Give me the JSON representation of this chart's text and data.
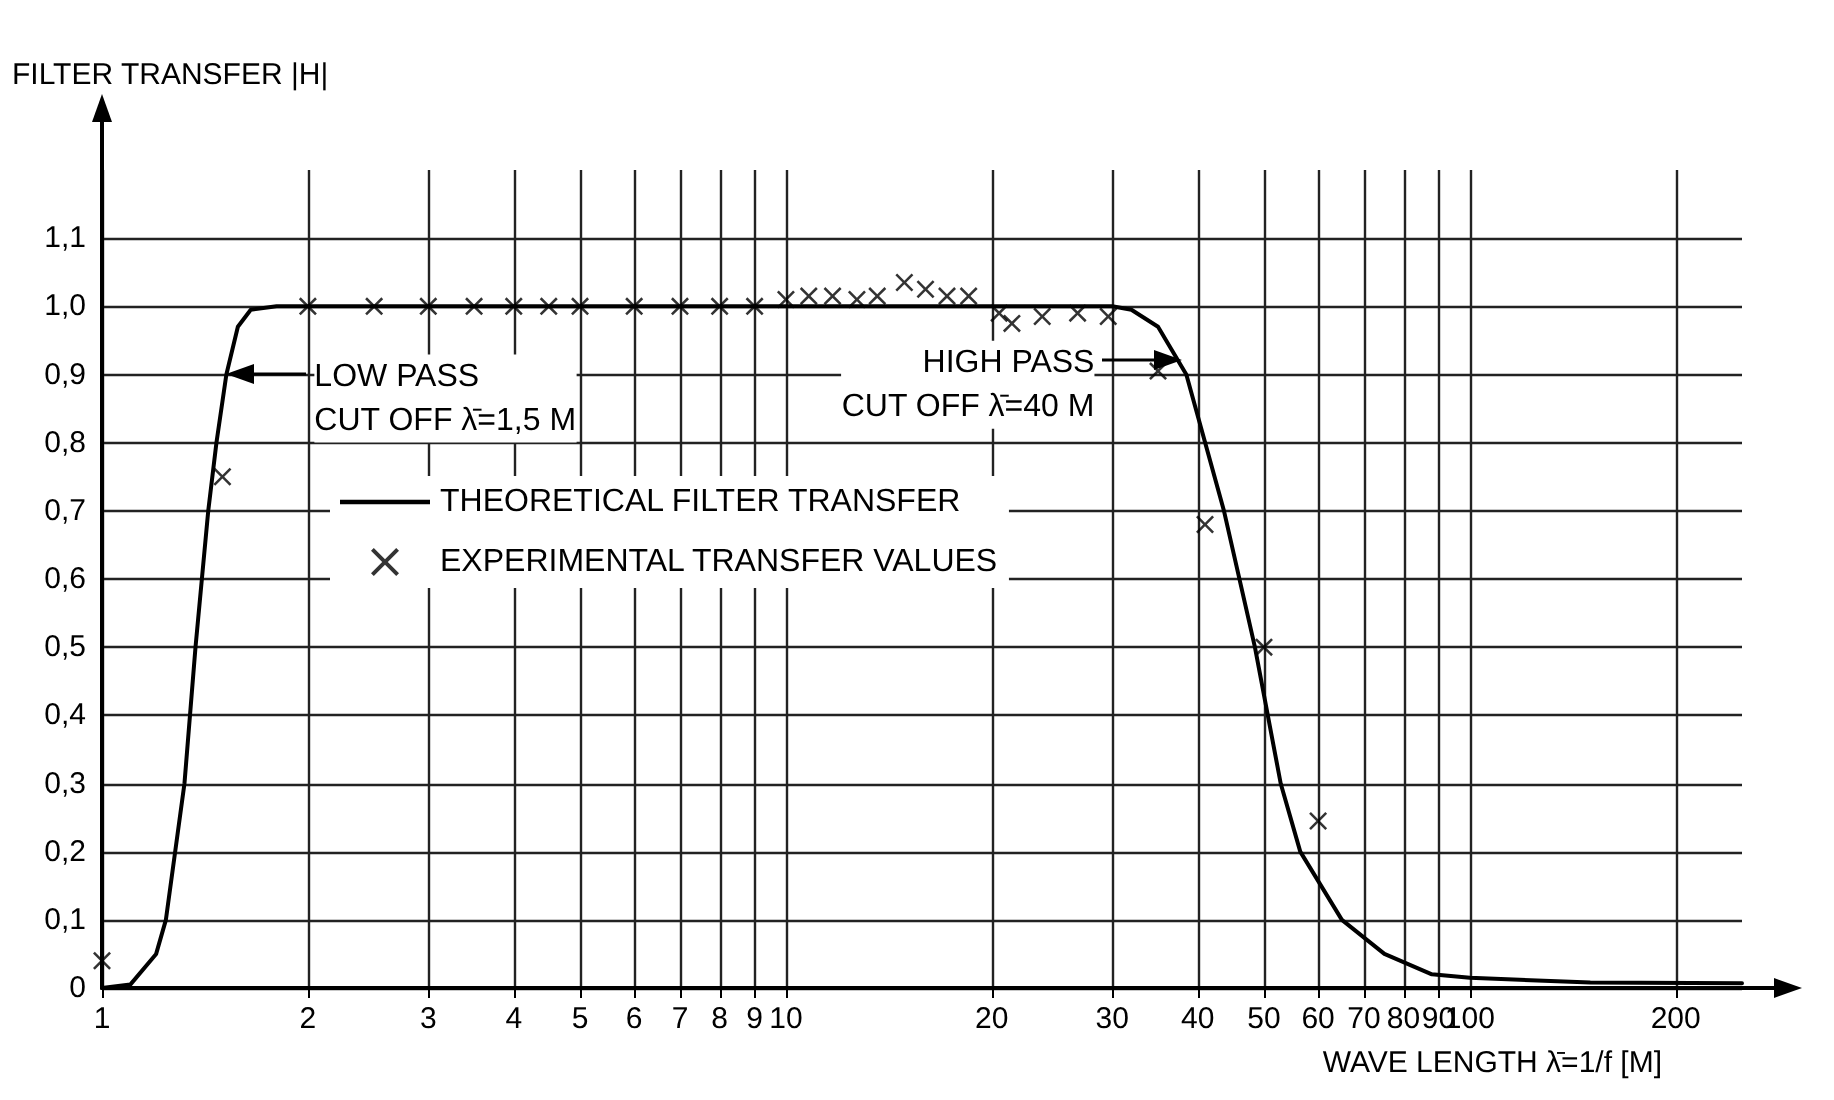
{
  "chart_data": {
    "type": "line",
    "ylabel": "FILTER TRANSFER |H|",
    "xlabel": "WAVE LENGTH λ̄=1/f [M]",
    "log": "x",
    "grid": true,
    "legend": "left",
    "xlim": [
      1,
      250
    ],
    "ylim": [
      0,
      1.2
    ],
    "xticks": [
      1,
      2,
      3,
      4,
      5,
      6,
      7,
      8,
      9,
      10,
      20,
      30,
      40,
      50,
      60,
      70,
      80,
      90,
      100,
      200
    ],
    "yticks": [
      0,
      {
        "value": 0.1,
        "label": "0,1"
      },
      {
        "value": 0.2,
        "label": "0,2"
      },
      {
        "value": 0.3,
        "label": "0,3"
      },
      {
        "value": 0.4,
        "label": "0,4"
      },
      {
        "value": 0.5,
        "label": "0,5"
      },
      {
        "value": 0.6,
        "label": "0,6"
      },
      {
        "value": 0.7,
        "label": "0,7"
      },
      {
        "value": 0.8,
        "label": "0,8"
      },
      {
        "value": 0.9,
        "label": "0,9"
      },
      {
        "value": 1.0,
        "label": "1,0"
      },
      {
        "value": 1.1,
        "label": "1,1"
      }
    ],
    "series": [
      {
        "name": "THEORETICAL FILTER TRANSFER",
        "type": "line",
        "color": "#000000",
        "marker": "none",
        "x": [
          1,
          1.1,
          1.2,
          1.24,
          1.32,
          1.37,
          1.43,
          1.47,
          1.52,
          1.58,
          1.65,
          1.8,
          2,
          10,
          30,
          32,
          35,
          38.5,
          43.7,
          48.5,
          52.9,
          56.5,
          65,
          75,
          88,
          100,
          150,
          250
        ],
        "values": [
          0,
          0.005,
          0.05,
          0.1,
          0.3,
          0.5,
          0.7,
          0.8,
          0.9,
          0.97,
          0.995,
          1.0,
          1.0,
          1.0,
          1.0,
          0.995,
          0.97,
          0.9,
          0.7,
          0.5,
          0.3,
          0.2,
          0.1,
          0.05,
          0.02,
          0.015,
          0.008,
          0.007
        ]
      },
      {
        "name": "EXPERIMENTAL TRANSFER VALUES",
        "type": "scatter",
        "color": "#000000",
        "marker": "cross",
        "x": [
          1,
          1.5,
          2,
          2.5,
          3,
          3.5,
          4,
          4.5,
          5,
          6,
          7,
          8,
          9,
          10,
          10.8,
          11.7,
          12.7,
          13.6,
          14.9,
          16,
          17.2,
          18.5,
          20.5,
          21.4,
          23.7,
          26.7,
          29.6,
          35,
          41,
          50,
          60
        ],
        "values": [
          0.04,
          0.75,
          1.0,
          1.0,
          1.0,
          1.0,
          1.0,
          1.0,
          1.0,
          1.0,
          1.0,
          1.0,
          1.0,
          1.01,
          1.015,
          1.015,
          1.01,
          1.015,
          1.035,
          1.025,
          1.015,
          1.015,
          0.99,
          0.975,
          0.985,
          0.99,
          0.985,
          0.905,
          0.68,
          0.5,
          0.245
        ]
      }
    ],
    "annotations": [
      {
        "text": "LOW PASS\nCUT OFF λ̄=1,5 M",
        "x": 1.52,
        "y": 0.9
      },
      {
        "text": "HIGH PASS\nCUT OFF λ̄=40 M",
        "x": 38,
        "y": 0.92
      }
    ]
  }
}
